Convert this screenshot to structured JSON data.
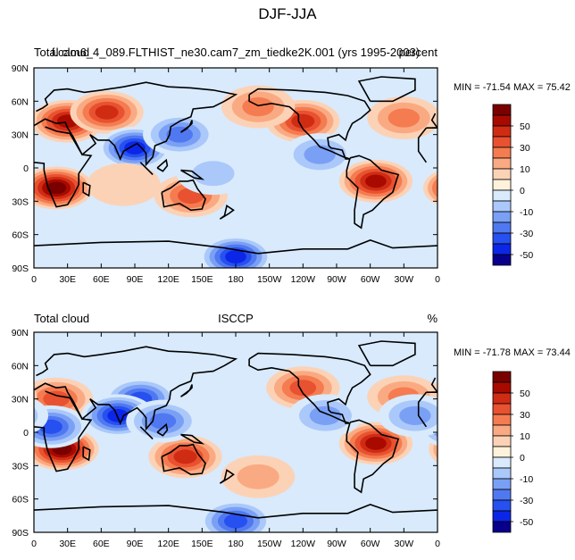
{
  "figure_title": "DJF-JJA",
  "chart_data": [
    {
      "type": "heatmap",
      "left_title": "Total cloud",
      "center_title": "f.cam6_4_089.FLTHIST_ne30.cam7_zm_tiedke2K.001 (yrs 1995-2003)",
      "right_title": "percent",
      "stats": "MIN = -71.54 MAX =  75.42",
      "min": -71.54,
      "max": 75.42,
      "x_ticks": [
        "0",
        "30E",
        "60E",
        "90E",
        "120E",
        "150E",
        "180",
        "150W",
        "120W",
        "90W",
        "60W",
        "30W",
        "0"
      ],
      "y_ticks": [
        "90N",
        "60N",
        "30N",
        "0",
        "30S",
        "60S",
        "90S"
      ],
      "xlim": [
        0,
        360
      ],
      "ylim": [
        -90,
        90
      ],
      "colorbar_labels": [
        "50",
        "30",
        "10",
        "0",
        "-10",
        "-30",
        "-50"
      ],
      "features": [
        {
          "lon": 30,
          "lat": 42,
          "value": 55
        },
        {
          "lon": 65,
          "lat": 50,
          "value": 45
        },
        {
          "lon": 20,
          "lat": -18,
          "value": 65
        },
        {
          "lon": 90,
          "lat": 18,
          "value": -60
        },
        {
          "lon": 130,
          "lat": 30,
          "value": -35
        },
        {
          "lon": 240,
          "lat": 42,
          "value": 50
        },
        {
          "lon": 305,
          "lat": -12,
          "value": 55
        },
        {
          "lon": 140,
          "lat": -25,
          "value": 35
        },
        {
          "lon": 160,
          "lat": -5,
          "value": -20
        },
        {
          "lon": 180,
          "lat": -80,
          "value": -55
        },
        {
          "lon": 200,
          "lat": 55,
          "value": 25
        },
        {
          "lon": 330,
          "lat": 45,
          "value": 30
        },
        {
          "lon": 80,
          "lat": -15,
          "value": 10
        },
        {
          "lon": 255,
          "lat": 12,
          "value": -25
        }
      ]
    },
    {
      "type": "heatmap",
      "left_title": "Total cloud",
      "center_title": "ISCCP",
      "right_title": "%",
      "stats": "MIN = -71.78 MAX =  73.44",
      "min": -71.78,
      "max": 73.44,
      "x_ticks": [
        "0",
        "30E",
        "60E",
        "90E",
        "120E",
        "150E",
        "180",
        "150W",
        "120W",
        "90W",
        "60W",
        "30W",
        "0"
      ],
      "y_ticks": [
        "90N",
        "60N",
        "30N",
        "0",
        "30S",
        "60S",
        "90S"
      ],
      "xlim": [
        0,
        360
      ],
      "ylim": [
        -90,
        90
      ],
      "colorbar_labels": [
        "50",
        "30",
        "10",
        "0",
        "-10",
        "-30",
        "-50"
      ],
      "features": [
        {
          "lon": 25,
          "lat": -15,
          "value": 65
        },
        {
          "lon": 305,
          "lat": -10,
          "value": 55
        },
        {
          "lon": 135,
          "lat": -22,
          "value": 50
        },
        {
          "lon": 20,
          "lat": 30,
          "value": 40
        },
        {
          "lon": 95,
          "lat": 30,
          "value": -45
        },
        {
          "lon": 75,
          "lat": 15,
          "value": -55
        },
        {
          "lon": 115,
          "lat": 10,
          "value": -40
        },
        {
          "lon": 15,
          "lat": 5,
          "value": -50
        },
        {
          "lon": 240,
          "lat": 40,
          "value": 35
        },
        {
          "lon": 330,
          "lat": 32,
          "value": 30
        },
        {
          "lon": 180,
          "lat": -80,
          "value": -45
        },
        {
          "lon": 260,
          "lat": 15,
          "value": -30
        },
        {
          "lon": 340,
          "lat": 15,
          "value": -25
        },
        {
          "lon": 200,
          "lat": -40,
          "value": 15
        }
      ]
    }
  ],
  "colors": {
    "levels": [
      "#08008c",
      "#0c26e8",
      "#2650f0",
      "#5078f0",
      "#7aa0f5",
      "#aac8fa",
      "#d8eafc",
      "#fff2dc",
      "#fcd2b6",
      "#faaa82",
      "#f57c50",
      "#e85230",
      "#d02c14",
      "#a80a00",
      "#7a0000"
    ],
    "land": "#000000"
  }
}
